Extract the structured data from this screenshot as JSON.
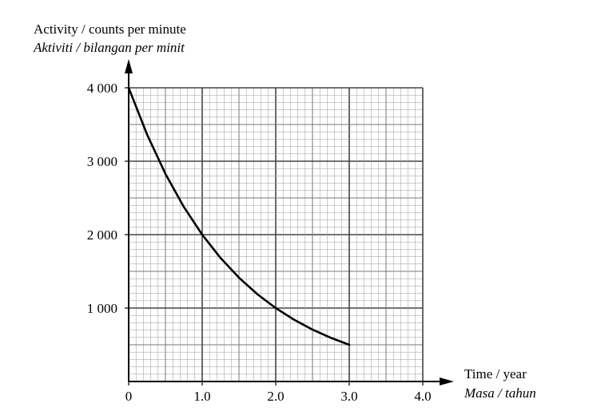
{
  "chart_data": {
    "type": "line",
    "ylabel": "Activity / counts per minute",
    "ylabel_alt": "Aktiviti / bilangan per minit",
    "xlabel": "Time / year",
    "xlabel_alt": "Masa / tahun",
    "xlim": [
      0,
      4.0
    ],
    "ylim": [
      0,
      4000
    ],
    "x_ticks": [
      {
        "value": 0,
        "label": "0"
      },
      {
        "value": 1.0,
        "label": "1.0"
      },
      {
        "value": 2.0,
        "label": "2.0"
      },
      {
        "value": 3.0,
        "label": "3.0"
      },
      {
        "value": 4.0,
        "label": "4.0"
      }
    ],
    "y_ticks": [
      {
        "value": 1000,
        "label": "1 000"
      },
      {
        "value": 2000,
        "label": "2 000"
      },
      {
        "value": 3000,
        "label": "3 000"
      },
      {
        "value": 4000,
        "label": "4 000"
      }
    ],
    "grid": true,
    "series": [
      {
        "x": [
          0,
          0.25,
          0.5,
          0.75,
          1.0,
          1.25,
          1.5,
          1.75,
          2.0,
          2.25,
          2.5,
          2.75,
          3.0
        ],
        "y": [
          4000,
          3364,
          2828,
          2378,
          2000,
          1682,
          1414,
          1189,
          1000,
          841,
          707,
          595,
          500
        ]
      }
    ]
  }
}
